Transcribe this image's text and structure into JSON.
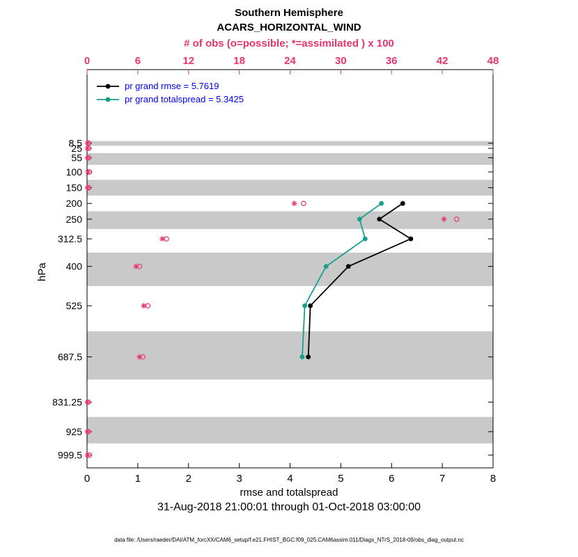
{
  "titles": {
    "line1": "Southern Hemisphere",
    "line2": "ACARS_HORIZONTAL_WIND"
  },
  "subtitle": "31-Aug-2018 21:00:01 through 01-Oct-2018 03:00:00",
  "footer": "data file: /Users/raeder/DAI/ATM_forcXX/CAM6_setup/f.e21.FHIST_BGC.f09_025.CAM6assim.011/Diags_NTrS_2018-09/obs_diag_output.nc",
  "legend": [
    {
      "label": "pr grand rmse = 5.7619",
      "color": "#000000"
    },
    {
      "label": "pr grand totalspread = 5.3425",
      "color": "#1a9e8c"
    }
  ],
  "chart_data": {
    "type": "line",
    "title": "Southern Hemisphere ACARS_HORIZONTAL_WIND",
    "x_bottom": {
      "label": "rmse and totalspread",
      "range": [
        0,
        8
      ],
      "ticks": [
        0,
        1,
        2,
        3,
        4,
        5,
        6,
        7,
        8
      ]
    },
    "x_top": {
      "label": "# of obs (o=possible; *=assimilated ) x 100",
      "range": [
        0,
        48
      ],
      "ticks": [
        0,
        6,
        12,
        18,
        24,
        30,
        36,
        42,
        48
      ]
    },
    "y": {
      "label": "hPa",
      "range": [
        -225,
        1040
      ],
      "levels": [
        8.5,
        25,
        55,
        100,
        150,
        200,
        250,
        312.5,
        400,
        525,
        687.5,
        831.25,
        925,
        999.5
      ],
      "gray_bands": [
        [
          2,
          16.75
        ],
        [
          40,
          77.5
        ],
        [
          125,
          175
        ],
        [
          225,
          281.25
        ],
        [
          356.25,
          462.5
        ],
        [
          606.25,
          759.375
        ],
        [
          878.125,
          962.25
        ]
      ]
    },
    "series": [
      {
        "name": "pr grand rmse = 5.7619",
        "color": "#000000",
        "points": [
          [
            200,
            6.22
          ],
          [
            250,
            5.76
          ],
          [
            312.5,
            6.38
          ],
          [
            400,
            5.15
          ],
          [
            525,
            4.4
          ],
          [
            687.5,
            4.36
          ]
        ]
      },
      {
        "name": "pr grand totalspread = 5.3425",
        "color": "#1a9e8c",
        "points": [
          [
            200,
            5.8
          ],
          [
            250,
            5.37
          ],
          [
            312.5,
            5.48
          ],
          [
            400,
            4.71
          ],
          [
            525,
            4.29
          ],
          [
            687.5,
            4.24
          ]
        ]
      }
    ],
    "obs_counts": {
      "units": "x 100",
      "points": [
        {
          "level": 8.5,
          "assimilated": 0.05,
          "possible": 0.2
        },
        {
          "level": 25,
          "assimilated": 0.05,
          "possible": 0.2
        },
        {
          "level": 55,
          "assimilated": 0.05,
          "possible": 0.2
        },
        {
          "level": 100,
          "assimilated": 0.1,
          "possible": 0.3
        },
        {
          "level": 150,
          "assimilated": 0.05,
          "possible": 0.2
        },
        {
          "level": 200,
          "assimilated": 24.5,
          "possible": 25.6
        },
        {
          "level": 250,
          "assimilated": 42.2,
          "possible": 43.7
        },
        {
          "level": 312.5,
          "assimilated": 8.9,
          "possible": 9.4
        },
        {
          "level": 400,
          "assimilated": 5.8,
          "possible": 6.2
        },
        {
          "level": 525,
          "assimilated": 6.7,
          "possible": 7.2
        },
        {
          "level": 687.5,
          "assimilated": 6.2,
          "possible": 6.6
        },
        {
          "level": 831.25,
          "assimilated": 0.05,
          "possible": 0.15
        },
        {
          "level": 925,
          "assimilated": 0.05,
          "possible": 0.15
        },
        {
          "level": 999.5,
          "assimilated": 0.05,
          "possible": 0.3
        }
      ]
    },
    "colors": {
      "band": "#c9c9c9",
      "axis": "#000000",
      "obs": "#e8356d",
      "legend_text": "#0000ee"
    }
  }
}
